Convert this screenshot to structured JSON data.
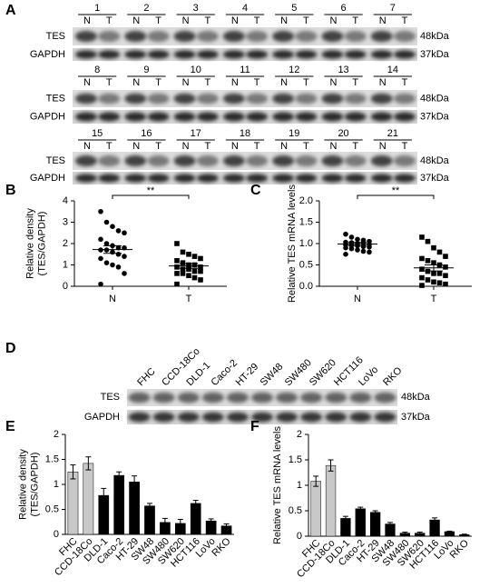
{
  "blot_a": {
    "label": "A",
    "pairs": [
      "1",
      "2",
      "3",
      "4",
      "5",
      "6",
      "7",
      "8",
      "9",
      "10",
      "11",
      "12",
      "13",
      "14",
      "15",
      "16",
      "17",
      "18",
      "19",
      "20",
      "21"
    ],
    "lane_labels": [
      "N",
      "T"
    ],
    "rows": [
      "TES",
      "GAPDH"
    ],
    "sizes": [
      "48kDa",
      "37kDa"
    ]
  },
  "blot_d": {
    "label": "D",
    "cell_lines": [
      "FHC",
      "CCD-18Co",
      "DLD-1",
      "Caco-2",
      "HT-29",
      "SW48",
      "SW480",
      "SW620",
      "HCT116",
      "LoVo",
      "RKO"
    ],
    "rows": [
      "TES",
      "GAPDH"
    ],
    "sizes": [
      "48kDa",
      "37kDa"
    ]
  },
  "chart_data": [
    {
      "type": "dotplot",
      "label": "B",
      "ylabel": [
        "Relative density",
        "(TES/GAPDH)"
      ],
      "categories": [
        "N",
        "T"
      ],
      "groups": [
        {
          "values": [
            3.5,
            3.0,
            2.8,
            2.6,
            2.5,
            2.2,
            2.0,
            1.9,
            1.8,
            1.8,
            1.7,
            1.7,
            1.6,
            1.5,
            1.4,
            1.3,
            1.1,
            1.0,
            0.9,
            0.6,
            0.1
          ],
          "mean": 1.72,
          "sem": 0.18,
          "marker": "circle"
        },
        {
          "values": [
            2.0,
            1.6,
            1.5,
            1.4,
            1.3,
            1.2,
            1.1,
            1.0,
            1.0,
            0.9,
            0.9,
            0.8,
            0.8,
            0.7,
            0.7,
            0.6,
            0.6,
            0.5,
            0.4,
            0.3,
            0.1
          ],
          "mean": 0.95,
          "sem": 0.11,
          "marker": "square"
        }
      ],
      "significance": "**",
      "ylim": [
        0,
        4
      ],
      "yticks": [
        0,
        1,
        2,
        3,
        4
      ],
      "color": "#000000"
    },
    {
      "type": "dotplot",
      "label": "C",
      "ylabel": [
        "Relative TES mRNA levels"
      ],
      "categories": [
        "N",
        "T"
      ],
      "groups": [
        {
          "values": [
            1.22,
            1.15,
            1.1,
            1.08,
            1.05,
            1.03,
            1.02,
            1.0,
            1.0,
            0.98,
            0.97,
            0.96,
            0.95,
            0.93,
            0.92,
            0.9,
            0.88,
            0.85,
            0.82,
            0.8,
            0.75
          ],
          "mean": 0.99,
          "sem": 0.04,
          "marker": "circle"
        },
        {
          "values": [
            1.15,
            1.05,
            0.9,
            0.8,
            0.7,
            0.65,
            0.6,
            0.55,
            0.5,
            0.45,
            0.4,
            0.35,
            0.3,
            0.3,
            0.25,
            0.2,
            0.15,
            0.1,
            0.08,
            0.05,
            0.02
          ],
          "mean": 0.43,
          "sem": 0.07,
          "marker": "square"
        }
      ],
      "significance": "**",
      "ylim": [
        0,
        2
      ],
      "yticks": [
        {
          "value": 0,
          "label": "0.0"
        },
        0.5,
        {
          "value": 1,
          "label": "1.0"
        },
        1.5,
        {
          "value": 2,
          "label": "2.0"
        }
      ],
      "color": "#000000"
    },
    {
      "type": "bar",
      "label": "E",
      "ylabel": [
        "Relative density",
        "(TES/GAPDH)"
      ],
      "categories": [
        "FHC",
        "CCD-18Co",
        "DLD-1",
        "Caco-2",
        "HT-29",
        "SW48",
        "SW480",
        "SW620",
        "HCT116",
        "LoVo",
        "RKO"
      ],
      "values": [
        1.25,
        1.42,
        0.78,
        1.18,
        1.05,
        0.57,
        0.24,
        0.22,
        0.62,
        0.27,
        0.17
      ],
      "errors": [
        0.14,
        0.13,
        0.14,
        0.07,
        0.12,
        0.05,
        0.08,
        0.08,
        0.06,
        0.04,
        0.04
      ],
      "colors": [
        "#c8c8c8",
        "#c8c8c8",
        "#000000",
        "#000000",
        "#000000",
        "#000000",
        "#000000",
        "#000000",
        "#000000",
        "#000000",
        "#000000"
      ],
      "ylim": [
        0,
        2
      ],
      "yticks": [
        0,
        0.5,
        1,
        1.5,
        2
      ]
    },
    {
      "type": "bar",
      "label": "F",
      "ylabel": [
        "Relative TES mRNA levels"
      ],
      "categories": [
        "FHC",
        "CCD-18Co",
        "DLD-1",
        "Caco-2",
        "HT-29",
        "SW48",
        "SW480",
        "SW620",
        "HCT116",
        "LoVo",
        "RKO"
      ],
      "values": [
        1.08,
        1.39,
        0.35,
        0.54,
        0.47,
        0.24,
        0.06,
        0.06,
        0.32,
        0.09,
        0.03
      ],
      "errors": [
        0.1,
        0.11,
        0.04,
        0.03,
        0.03,
        0.03,
        0.02,
        0.02,
        0.04,
        0.01,
        0.01
      ],
      "colors": [
        "#c8c8c8",
        "#c8c8c8",
        "#000000",
        "#000000",
        "#000000",
        "#000000",
        "#000000",
        "#000000",
        "#000000",
        "#000000",
        "#000000"
      ],
      "ylim": [
        0,
        2
      ],
      "yticks": [
        0,
        0.5,
        1,
        1.5,
        2
      ]
    }
  ]
}
